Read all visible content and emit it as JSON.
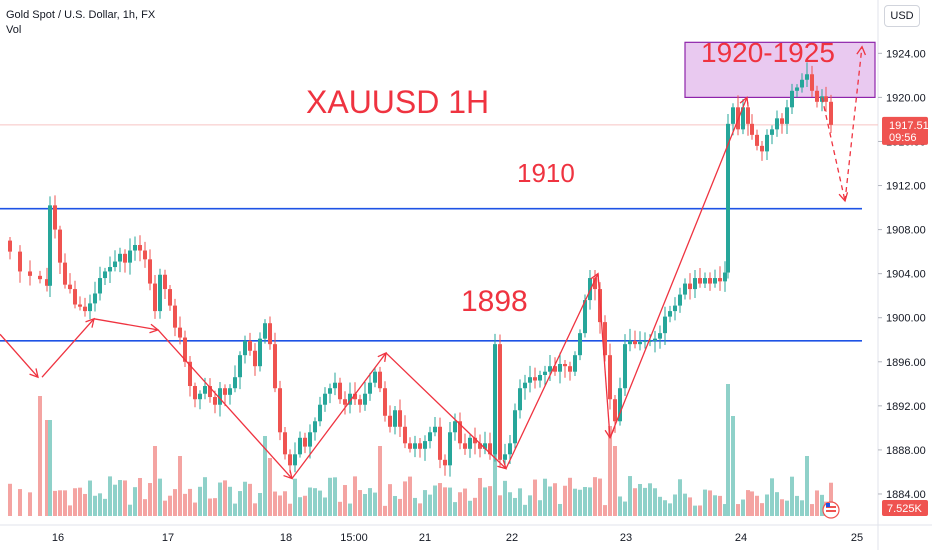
{
  "header": {
    "symbol_title": "Gold Spot / U.S. Dollar, 1h, FX",
    "volume_label": "Vol",
    "currency_button": "USD"
  },
  "colors": {
    "up": "#26a69a",
    "down": "#ef5350",
    "vol_up": "#8fd1c9",
    "vol_down": "#f4a4a2",
    "level_line": "#1e53e5",
    "annotation": "#ef3340",
    "zone_fill": "#e9c9f0",
    "zone_border": "#8e24aa",
    "price_badge": "#ef5350",
    "volume_badge": "#ef5350"
  },
  "annotations": {
    "title": "XAUUSD 1H",
    "zone": "1920-1925",
    "level_1910": "1910",
    "level_1898": "1898"
  },
  "price_badge": {
    "price": "1917.51",
    "countdown": "09:56"
  },
  "volume_badge": "7.525K",
  "chart_data": {
    "type": "candlestick",
    "symbol": "Gold Spot / U.S. Dollar",
    "interval": "1h",
    "y_axis": {
      "ticks": [
        1884.0,
        1888.0,
        1892.0,
        1896.0,
        1900.0,
        1904.0,
        1908.0,
        1912.0,
        1916.0,
        1920.0,
        1924.0
      ],
      "tick_labels": [
        "1884.00",
        "1888.00",
        "1892.00",
        "1896.00",
        "1900.00",
        "1904.00",
        "1908.00",
        "1912.00",
        "1916.00",
        "1920.00",
        "1924.00"
      ],
      "range": [
        1882.0,
        1926.3
      ]
    },
    "x_axis": {
      "tick_labels": [
        "16",
        "17",
        "18",
        "15:00",
        "21",
        "22",
        "23",
        "24",
        "25"
      ]
    },
    "horizontal_levels": [
      1909.9,
      1897.9
    ],
    "zone": {
      "low": 1920.0,
      "high": 1925.0
    },
    "last_price": 1917.51,
    "price_path": [
      [
        0,
        1907.0
      ],
      [
        10,
        1906.0
      ],
      [
        20,
        1904.2
      ],
      [
        30,
        1903.8
      ],
      [
        40,
        1903.5
      ],
      [
        47,
        1902.9
      ],
      [
        50,
        1910.2
      ],
      [
        55,
        1908.0
      ],
      [
        60,
        1905.0
      ],
      [
        65,
        1903.0
      ],
      [
        70,
        1902.6
      ],
      [
        75,
        1901.2
      ],
      [
        80,
        1901.0
      ],
      [
        85,
        1900.6
      ],
      [
        90,
        1901.3
      ],
      [
        95,
        1902.2
      ],
      [
        100,
        1903.6
      ],
      [
        105,
        1904.2
      ],
      [
        110,
        1904.6
      ],
      [
        115,
        1905.1
      ],
      [
        120,
        1905.8
      ],
      [
        125,
        1905.0
      ],
      [
        130,
        1906.1
      ],
      [
        135,
        1906.6
      ],
      [
        140,
        1906.1
      ],
      [
        145,
        1905.3
      ],
      [
        150,
        1903.1
      ],
      [
        155,
        1900.6
      ],
      [
        160,
        1903.9
      ],
      [
        165,
        1902.6
      ],
      [
        170,
        1901.1
      ],
      [
        175,
        1899.1
      ],
      [
        180,
        1898.2
      ],
      [
        185,
        1896.0
      ],
      [
        190,
        1893.8
      ],
      [
        195,
        1892.6
      ],
      [
        200,
        1893.1
      ],
      [
        205,
        1893.8
      ],
      [
        210,
        1892.8
      ],
      [
        215,
        1892.1
      ],
      [
        220,
        1893.6
      ],
      [
        225,
        1893.0
      ],
      [
        230,
        1893.6
      ],
      [
        235,
        1894.6
      ],
      [
        240,
        1896.6
      ],
      [
        245,
        1897.9
      ],
      [
        250,
        1897.0
      ],
      [
        255,
        1895.6
      ],
      [
        260,
        1898.1
      ],
      [
        265,
        1899.5
      ],
      [
        270,
        1897.6
      ],
      [
        275,
        1893.6
      ],
      [
        280,
        1889.6
      ],
      [
        285,
        1887.6
      ],
      [
        290,
        1886.6
      ],
      [
        295,
        1887.6
      ],
      [
        300,
        1889.1
      ],
      [
        305,
        1888.3
      ],
      [
        310,
        1889.6
      ],
      [
        315,
        1890.6
      ],
      [
        320,
        1892.1
      ],
      [
        325,
        1893.1
      ],
      [
        330,
        1893.6
      ],
      [
        335,
        1894.1
      ],
      [
        340,
        1892.6
      ],
      [
        345,
        1892.1
      ],
      [
        350,
        1893.1
      ],
      [
        355,
        1892.6
      ],
      [
        360,
        1892.1
      ],
      [
        365,
        1893.1
      ],
      [
        370,
        1894.1
      ],
      [
        375,
        1895.1
      ],
      [
        380,
        1893.6
      ],
      [
        385,
        1891.1
      ],
      [
        390,
        1890.1
      ],
      [
        395,
        1891.6
      ],
      [
        400,
        1890.1
      ],
      [
        405,
        1888.6
      ],
      [
        410,
        1888.1
      ],
      [
        415,
        1888.6
      ],
      [
        420,
        1888.1
      ],
      [
        425,
        1888.8
      ],
      [
        430,
        1889.6
      ],
      [
        435,
        1890.1
      ],
      [
        440,
        1887.1
      ],
      [
        445,
        1886.6
      ],
      [
        450,
        1889.6
      ],
      [
        455,
        1890.6
      ],
      [
        460,
        1888.6
      ],
      [
        465,
        1888.1
      ],
      [
        470,
        1889.1
      ],
      [
        475,
        1888.6
      ],
      [
        480,
        1888.1
      ],
      [
        485,
        1888.6
      ],
      [
        490,
        1887.6
      ],
      [
        495,
        1897.6
      ],
      [
        500,
        1887.1
      ],
      [
        505,
        1887.6
      ],
      [
        510,
        1888.6
      ],
      [
        515,
        1891.6
      ],
      [
        520,
        1893.6
      ],
      [
        525,
        1894.1
      ],
      [
        530,
        1894.6
      ],
      [
        535,
        1894.3
      ],
      [
        540,
        1894.8
      ],
      [
        545,
        1895.1
      ],
      [
        550,
        1895.6
      ],
      [
        555,
        1895.1
      ],
      [
        560,
        1895.8
      ],
      [
        565,
        1895.6
      ],
      [
        570,
        1895.1
      ],
      [
        575,
        1896.6
      ],
      [
        580,
        1898.6
      ],
      [
        585,
        1901.6
      ],
      [
        590,
        1903.6
      ],
      [
        595,
        1902.6
      ],
      [
        600,
        1899.6
      ],
      [
        605,
        1896.6
      ],
      [
        610,
        1892.6
      ],
      [
        615,
        1890.6
      ],
      [
        620,
        1893.6
      ],
      [
        625,
        1897.6
      ],
      [
        630,
        1897.9
      ],
      [
        635,
        1897.6
      ],
      [
        640,
        1897.8
      ],
      [
        645,
        1897.9
      ],
      [
        650,
        1897.9
      ],
      [
        655,
        1898.1
      ],
      [
        660,
        1898.6
      ],
      [
        665,
        1900.1
      ],
      [
        670,
        1900.6
      ],
      [
        675,
        1901.1
      ],
      [
        680,
        1902.1
      ],
      [
        685,
        1903.1
      ],
      [
        690,
        1902.6
      ],
      [
        695,
        1903.6
      ],
      [
        700,
        1903.1
      ],
      [
        705,
        1903.6
      ],
      [
        710,
        1903.1
      ],
      [
        715,
        1903.6
      ],
      [
        720,
        1903.3
      ],
      [
        725,
        1904.1
      ],
      [
        728,
        1917.6
      ],
      [
        733,
        1919.1
      ],
      [
        738,
        1917.1
      ],
      [
        743,
        1919.1
      ],
      [
        748,
        1917.6
      ],
      [
        752,
        1916.6
      ],
      [
        757,
        1915.6
      ],
      [
        762,
        1915.1
      ],
      [
        767,
        1916.6
      ],
      [
        772,
        1917.1
      ],
      [
        777,
        1918.1
      ],
      [
        782,
        1917.6
      ],
      [
        787,
        1919.1
      ],
      [
        792,
        1920.6
      ],
      [
        797,
        1920.9
      ],
      [
        802,
        1921.6
      ],
      [
        807,
        1922.1
      ],
      [
        812,
        1920.6
      ],
      [
        817,
        1919.6
      ],
      [
        822,
        1920.1
      ],
      [
        826,
        1919.6
      ],
      [
        831,
        1917.51
      ]
    ],
    "volume": {
      "max_label": "7.525K"
    },
    "drawn_arrows": [
      {
        "from": [
          0,
          1898.5
        ],
        "to": [
          38,
          1894.6
        ]
      },
      {
        "from": [
          42,
          1894.6
        ],
        "to": [
          94,
          1899.9
        ]
      },
      {
        "from": [
          94,
          1899.9
        ],
        "to": [
          158,
          1898.9
        ]
      },
      {
        "from": [
          158,
          1898.9
        ],
        "to": [
          292,
          1885.4
        ]
      },
      {
        "from": [
          292,
          1885.4
        ],
        "to": [
          386,
          1896.8
        ]
      },
      {
        "from": [
          386,
          1896.8
        ],
        "to": [
          506,
          1886.3
        ]
      },
      {
        "from": [
          506,
          1886.3
        ],
        "to": [
          598,
          1904.0
        ]
      },
      {
        "from": [
          598,
          1904.0
        ],
        "to": [
          610,
          1889.1
        ]
      },
      {
        "from": [
          610,
          1889.1
        ],
        "to": [
          747,
          1920.0
        ]
      },
      {
        "from": [
          822,
          1920.0
        ],
        "to": [
          845,
          1910.6
        ],
        "dashed": true
      },
      {
        "from": [
          845,
          1910.6
        ],
        "to": [
          862,
          1924.6
        ],
        "dashed": true
      }
    ]
  }
}
